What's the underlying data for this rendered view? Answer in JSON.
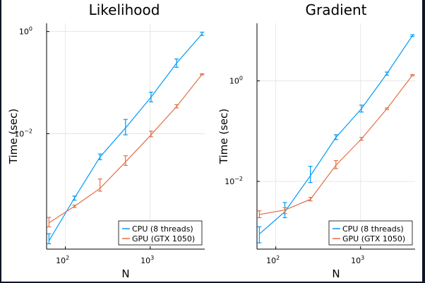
{
  "chart_data": [
    {
      "type": "line",
      "title": "Likelihood",
      "xlabel": "N",
      "ylabel": "Time (sec)",
      "xscale": "log",
      "yscale": "log",
      "xlim": [
        60,
        4400
      ],
      "ylim": [
        5.5e-05,
        1.45
      ],
      "xticks": [
        {
          "value": 100,
          "base": "10",
          "exp": "2"
        },
        {
          "value": 1000,
          "base": "10",
          "exp": "3"
        }
      ],
      "yticks": [
        {
          "value": 0.01,
          "base": "10",
          "exp": "−2"
        },
        {
          "value": 1,
          "base": "10",
          "exp": "0"
        }
      ],
      "grid": true,
      "legend": "bottom-right",
      "x": [
        64,
        128,
        256,
        512,
        1024,
        2048,
        4096
      ],
      "series": [
        {
          "name": "CPU (8 threads)",
          "color": "#009af9",
          "values": [
            8e-05,
            0.00055,
            0.0035,
            0.013,
            0.052,
            0.24,
            0.9
          ],
          "err_low": [
            7e-05,
            0.0005,
            0.0031,
            0.0095,
            0.042,
            0.2,
            0.84
          ],
          "err_high": [
            0.00011,
            0.0006,
            0.004,
            0.019,
            0.065,
            0.29,
            0.96
          ]
        },
        {
          "name": "GPU (GTX 1050)",
          "color": "#e26f46",
          "values": [
            0.00018,
            0.00038,
            0.00085,
            0.0028,
            0.0095,
            0.034,
            0.145
          ],
          "err_low": [
            0.00015,
            0.00036,
            0.00075,
            0.0024,
            0.0087,
            0.032,
            0.142
          ],
          "err_high": [
            0.00023,
            0.0004,
            0.0013,
            0.0037,
            0.0112,
            0.037,
            0.149
          ]
        }
      ]
    },
    {
      "type": "line",
      "title": "Gradient",
      "xlabel": "N",
      "ylabel": "Time (sec)",
      "xscale": "log",
      "yscale": "log",
      "xlim": [
        60,
        4400
      ],
      "ylim": [
        0.00045,
        14
      ],
      "xticks": [
        {
          "value": 100,
          "base": "10",
          "exp": "2"
        },
        {
          "value": 1000,
          "base": "10",
          "exp": "3"
        }
      ],
      "yticks": [
        {
          "value": 0.01,
          "base": "10",
          "exp": "−2"
        },
        {
          "value": 1,
          "base": "10",
          "exp": "0"
        }
      ],
      "grid": true,
      "legend": "bottom-right",
      "x": [
        64,
        128,
        256,
        512,
        1024,
        2048,
        4096
      ],
      "series": [
        {
          "name": "CPU (8 threads)",
          "color": "#009af9",
          "values": [
            0.0009,
            0.0025,
            0.013,
            0.075,
            0.28,
            1.4,
            8.0
          ],
          "err_low": [
            0.0006,
            0.0019,
            0.0095,
            0.068,
            0.24,
            1.3,
            7.7
          ],
          "err_high": [
            0.00125,
            0.0038,
            0.02,
            0.085,
            0.33,
            1.5,
            8.3
          ]
        },
        {
          "name": "GPU (GTX 1050)",
          "color": "#e26f46",
          "values": [
            0.0022,
            0.0027,
            0.0044,
            0.021,
            0.07,
            0.28,
            1.3
          ],
          "err_low": [
            0.0019,
            0.0023,
            0.0041,
            0.018,
            0.066,
            0.27,
            1.26
          ],
          "err_high": [
            0.0026,
            0.003,
            0.0048,
            0.026,
            0.075,
            0.29,
            1.34
          ]
        }
      ]
    }
  ]
}
